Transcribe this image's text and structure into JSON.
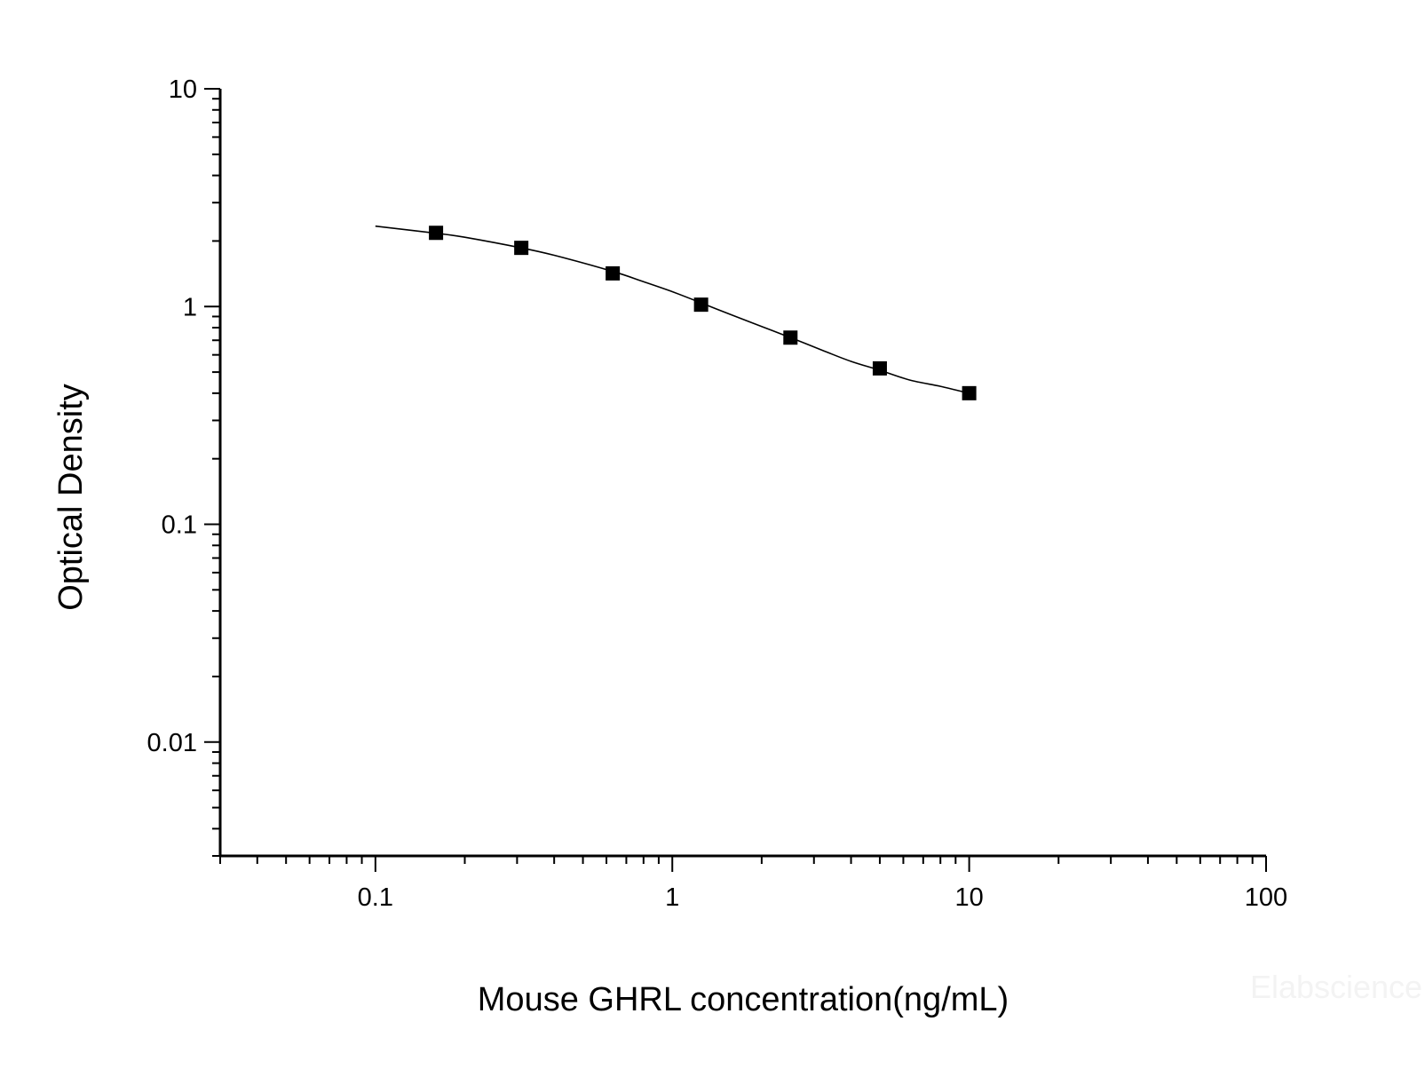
{
  "chart_data": {
    "type": "scatter",
    "title": "",
    "xlabel": "Mouse GHRL concentration(ng/mL)",
    "ylabel": "Optical Density",
    "x_scale": "log",
    "y_scale": "log",
    "xlim": [
      0.03,
      100
    ],
    "ylim": [
      0.003,
      10
    ],
    "x_ticks": [
      {
        "value": 0.1,
        "label": "0.1"
      },
      {
        "value": 1,
        "label": "1"
      },
      {
        "value": 10,
        "label": "10"
      },
      {
        "value": 100,
        "label": "100"
      }
    ],
    "y_ticks": [
      {
        "value": 10,
        "label": "10"
      },
      {
        "value": 1,
        "label": "1"
      },
      {
        "value": 0.1,
        "label": "0.1"
      },
      {
        "value": 0.01,
        "label": "0.01"
      }
    ],
    "grid": false,
    "legend": "none",
    "series": [
      {
        "marker": "square",
        "color": "#000000",
        "x": [
          0.16,
          0.31,
          0.63,
          1.25,
          2.5,
          5,
          10
        ],
        "y": [
          2.18,
          1.86,
          1.42,
          1.02,
          0.72,
          0.52,
          0.4
        ]
      }
    ],
    "fit_curve": {
      "color": "#000000",
      "x": [
        0.1,
        0.16,
        0.2,
        0.31,
        0.4,
        0.63,
        0.8,
        1.0,
        1.25,
        1.6,
        2.0,
        2.5,
        3.2,
        4.0,
        5.0,
        6.3,
        8.0,
        10.0
      ],
      "y": [
        2.34,
        2.17,
        2.08,
        1.86,
        1.72,
        1.45,
        1.3,
        1.17,
        1.04,
        0.91,
        0.81,
        0.72,
        0.63,
        0.56,
        0.51,
        0.46,
        0.43,
        0.4
      ]
    }
  },
  "watermark": "Elabscience"
}
